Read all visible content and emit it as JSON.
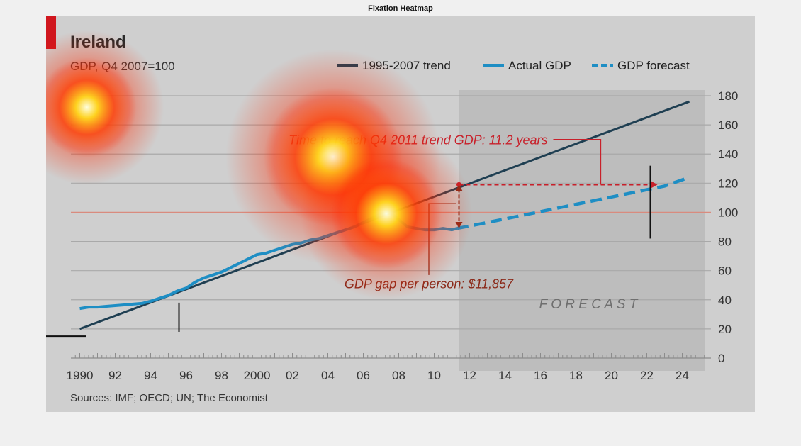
{
  "figure_title": "Fixation Heatmap",
  "colors": {
    "trend": "#1f3f52",
    "actual": "#1e8ec4",
    "forecast": "#1e8ec4",
    "annotation_red": "#c8202a",
    "gap_text": "#8b2a1a",
    "forecast_shade": "#bdbdbd",
    "reference_line": "#d98b7e",
    "heat_core": "#ffffe0",
    "heat_mid": "#ffd21a",
    "heat_outer": "#ff2a00"
  },
  "chart_data": {
    "type": "line",
    "title": "Ireland",
    "subtitle": "GDP, Q4 2007=100",
    "source": "Sources: IMF; OECD; UN; The Economist",
    "xlim": [
      1989.5,
      2025.3
    ],
    "ylim": [
      0,
      180
    ],
    "yticks": [
      0,
      20,
      40,
      60,
      80,
      100,
      120,
      140,
      160,
      180
    ],
    "xticks": [
      {
        "value": 1990,
        "label": "1990"
      },
      {
        "value": 1992,
        "label": "92"
      },
      {
        "value": 1994,
        "label": "94"
      },
      {
        "value": 1996,
        "label": "96"
      },
      {
        "value": 1998,
        "label": "98"
      },
      {
        "value": 2000,
        "label": "2000"
      },
      {
        "value": 2002,
        "label": "02"
      },
      {
        "value": 2004,
        "label": "04"
      },
      {
        "value": 2006,
        "label": "06"
      },
      {
        "value": 2008,
        "label": "08"
      },
      {
        "value": 2010,
        "label": "10"
      },
      {
        "value": 2012,
        "label": "12"
      },
      {
        "value": 2014,
        "label": "14"
      },
      {
        "value": 2016,
        "label": "16"
      },
      {
        "value": 2018,
        "label": "18"
      },
      {
        "value": 2020,
        "label": "20"
      },
      {
        "value": 2022,
        "label": "22"
      },
      {
        "value": 2024,
        "label": "24"
      }
    ],
    "reference_line_y": 100,
    "forecast_region_start": 2011.4,
    "forecast_label": "F O R E C A S T",
    "legend": [
      "1995-2007 trend",
      "Actual GDP",
      "GDP forecast"
    ],
    "series": [
      {
        "name": "1995-2007 trend",
        "style": "solid",
        "x": [
          1990,
          2024.4
        ],
        "y": [
          20,
          176
        ]
      },
      {
        "name": "Actual GDP",
        "style": "solid",
        "x": [
          1990,
          1990.5,
          1991,
          1991.5,
          1992,
          1992.5,
          1993,
          1993.5,
          1994,
          1994.5,
          1995,
          1995.5,
          1996,
          1996.5,
          1997,
          1997.5,
          1998,
          1998.5,
          1999,
          1999.5,
          2000,
          2000.5,
          2001,
          2001.5,
          2002,
          2002.5,
          2003,
          2003.5,
          2004,
          2004.5,
          2005,
          2005.5,
          2006,
          2006.5,
          2007,
          2007.5,
          2008,
          2008.5,
          2009,
          2009.5,
          2010,
          2010.5,
          2011,
          2011.3
        ],
        "y": [
          34,
          35,
          35,
          35.5,
          36,
          36.5,
          37,
          37.5,
          39,
          41,
          43,
          46,
          48,
          52,
          55,
          57,
          59,
          62,
          65,
          68,
          71,
          72,
          74,
          76,
          78,
          79,
          81,
          82,
          84,
          86,
          88,
          90,
          93,
          96,
          99,
          100,
          95,
          90,
          89,
          88,
          88,
          89,
          88,
          89
        ]
      },
      {
        "name": "GDP forecast",
        "style": "dashed",
        "x": [
          2011.3,
          2013,
          2015,
          2017,
          2019,
          2021,
          2023,
          2024.4
        ],
        "y": [
          89,
          93,
          98,
          103,
          108,
          113,
          118,
          124
        ]
      }
    ],
    "annotations": [
      {
        "text": "Time to reach Q4 2011 trend GDP: 11.2 years",
        "x": 2011.4,
        "y": 119,
        "x_end": 2022.6
      },
      {
        "text": "GDP gap per person: $11,857",
        "x_target": 2011.4,
        "y_low": 89,
        "y_high": 119
      }
    ],
    "fixations": [
      {
        "x": 1990.4,
        "y": 172,
        "weight": 0.9
      },
      {
        "x": 2004.3,
        "y": 138,
        "weight": 1.0
      },
      {
        "x": 2007.3,
        "y": 99,
        "weight": 1.0
      }
    ],
    "markers": [
      {
        "x": 1995.6,
        "y_low": 18,
        "y_high": 38
      },
      {
        "x": 2022.2,
        "y_low": 82,
        "y_high": 132
      }
    ]
  }
}
